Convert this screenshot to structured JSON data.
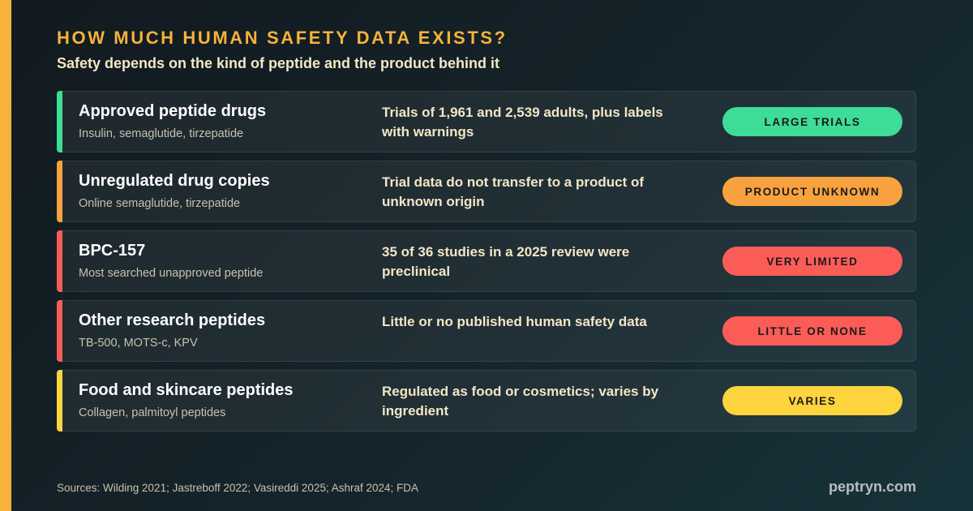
{
  "heading": "HOW MUCH HUMAN SAFETY DATA EXISTS?",
  "subheading": "Safety depends on the kind of peptide and the product behind it",
  "colors": {
    "accent": "#f7b23b",
    "green": "#3ddc97",
    "orange": "#f8a23f",
    "red": "#fc5c58",
    "yellow": "#fdd33e"
  },
  "rows": [
    {
      "title": "Approved peptide drugs",
      "subtitle": "Insulin, semaglutide, tirzepatide",
      "description": "Trials of 1,961 and 2,539 adults, plus labels with warnings",
      "badge": "LARGE TRIALS",
      "color": "#3ddc97"
    },
    {
      "title": "Unregulated drug copies",
      "subtitle": "Online semaglutide, tirzepatide",
      "description": "Trial data do not transfer to a product of unknown origin",
      "badge": "PRODUCT UNKNOWN",
      "color": "#f8a23f"
    },
    {
      "title": "BPC-157",
      "subtitle": "Most searched unapproved peptide",
      "description": "35 of 36 studies in a 2025 review were preclinical",
      "badge": "VERY LIMITED",
      "color": "#fc5c58"
    },
    {
      "title": "Other research peptides",
      "subtitle": "TB-500, MOTS-c, KPV",
      "description": "Little or no published human safety data",
      "badge": "LITTLE OR NONE",
      "color": "#fc5c58"
    },
    {
      "title": "Food and skincare peptides",
      "subtitle": "Collagen, palmitoyl peptides",
      "description": "Regulated as food or cosmetics; varies by ingredient",
      "badge": "VARIES",
      "color": "#fdd33e"
    }
  ],
  "footer": {
    "sources": "Sources: Wilding 2021; Jastreboff 2022; Vasireddi 2025; Ashraf 2024; FDA",
    "brand": "peptryn.com"
  }
}
